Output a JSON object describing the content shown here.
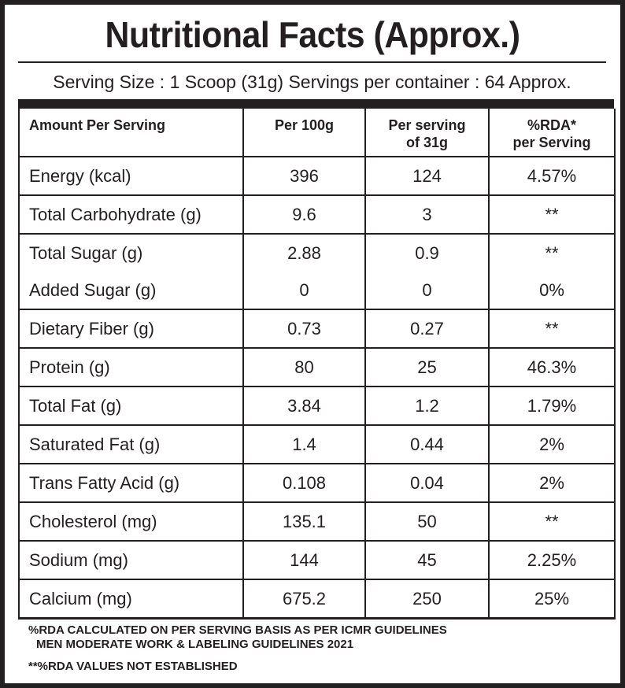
{
  "title": "Nutritional Facts (Approx.)",
  "serving_info": "Serving Size : 1 Scoop (31g) Servings per container : 64 Approx.",
  "table": {
    "headers": {
      "amount": "Amount Per Serving",
      "per100": "Per 100g",
      "perServing_line1": "Per serving",
      "perServing_line2": "of 31g",
      "rda_line1": "%RDA*",
      "rda_line2": "per Serving"
    },
    "rows": [
      {
        "name": "Energy (kcal)",
        "per100": "396",
        "perServing": "124",
        "rda": "4.57%"
      },
      {
        "name": "Total Carbohydrate (g)",
        "per100": "9.6",
        "perServing": "3",
        "rda": "**"
      },
      {
        "name": "Total Sugar (g)",
        "per100": "2.88",
        "perServing": "0.9",
        "rda": "**"
      },
      {
        "name": "Added Sugar (g)",
        "per100": "0",
        "perServing": "0",
        "rda": "0%"
      },
      {
        "name": "Dietary Fiber (g)",
        "per100": "0.73",
        "perServing": "0.27",
        "rda": "**"
      },
      {
        "name": "Protein (g)",
        "per100": "80",
        "perServing": "25",
        "rda": "46.3%"
      },
      {
        "name": "Total Fat (g)",
        "per100": "3.84",
        "perServing": "1.2",
        "rda": "1.79%"
      },
      {
        "name": "Saturated Fat (g)",
        "per100": "1.4",
        "perServing": "0.44",
        "rda": "2%"
      },
      {
        "name": "Trans Fatty Acid (g)",
        "per100": "0.108",
        "perServing": "0.04",
        "rda": "2%"
      },
      {
        "name": "Cholesterol (mg)",
        "per100": "135.1",
        "perServing": "50",
        "rda": "**"
      },
      {
        "name": "Sodium (mg)",
        "per100": "144",
        "perServing": "45",
        "rda": "2.25%"
      },
      {
        "name": "Calcium (mg)",
        "per100": "675.2",
        "perServing": "250",
        "rda": "25%"
      }
    ]
  },
  "footnotes": {
    "line1": "%RDA CALCULATED ON PER SERVING BASIS AS PER ICMR GUIDELINES",
    "line2": "MEN MODERATE WORK & LABELING GUIDELINES 2021",
    "line3": "**%RDA VALUES NOT ESTABLISHED"
  },
  "colors": {
    "ink": "#231f20",
    "background": "#ffffff"
  }
}
